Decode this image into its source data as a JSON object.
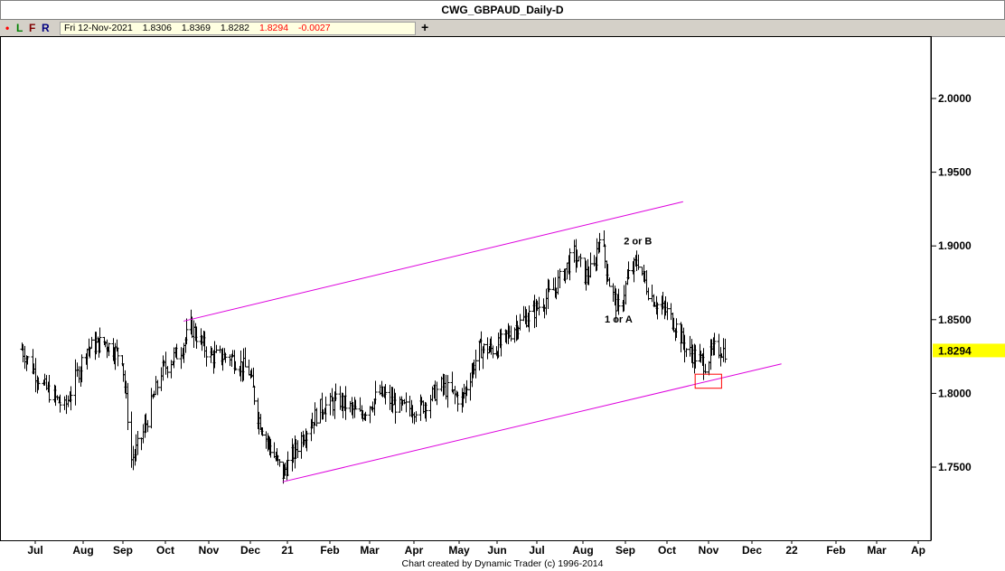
{
  "window": {
    "title": "CWG_GBPAUD_Daily-D"
  },
  "toolbar": {
    "buttons": [
      {
        "label": "•",
        "color": "#ff0000"
      },
      {
        "label": "L",
        "color": "#008000"
      },
      {
        "label": "F",
        "color": "#800000"
      },
      {
        "label": "R",
        "color": "#000080"
      }
    ],
    "plus_label": "+"
  },
  "info": {
    "date": "Fri 12-Nov-2021",
    "open": "1.8306",
    "high": "1.8369",
    "low": "1.8282",
    "close": "1.8294",
    "change": "-0.0027"
  },
  "footer": {
    "credit": "Chart created by Dynamic Trader  (c)  1996-2014"
  },
  "colors": {
    "trendline": "#dd00dd",
    "price_tag": "#ffff00",
    "highlight_box": "#ff0000",
    "change_text": "#ff0000"
  },
  "chart_data": {
    "type": "ohlc",
    "title": "CWG_GBPAUD_Daily-D",
    "x_tick_labels": [
      "Jul",
      "Aug",
      "Sep",
      "Oct",
      "Nov",
      "Dec",
      "21",
      "Feb",
      "Mar",
      "Apr",
      "May",
      "Jun",
      "Jul",
      "Aug",
      "Sep",
      "Oct",
      "Nov",
      "Dec",
      "22",
      "Feb",
      "Mar",
      "Ap"
    ],
    "y_ticks": [
      "1.7500",
      "1.8000",
      "1.8500",
      "1.9000",
      "1.9500",
      "2.0000"
    ],
    "ylim": [
      1.68,
      2.05
    ],
    "last_price": "1.8294",
    "series": [
      {
        "x": [
          "2020-06-22",
          "2020-07-06",
          "2020-07-20",
          "2020-08-03",
          "2020-08-17",
          "2020-08-31",
          "2020-09-07",
          "2020-09-14",
          "2020-09-28",
          "2020-10-12",
          "2020-10-19",
          "2020-11-02",
          "2020-11-16",
          "2020-11-30",
          "2020-12-07",
          "2020-12-14",
          "2020-12-28",
          "2021-01-11",
          "2021-01-25",
          "2021-02-08",
          "2021-02-22",
          "2021-03-08",
          "2021-03-22",
          "2021-04-05",
          "2021-04-19",
          "2021-05-03",
          "2021-05-17",
          "2021-05-31",
          "2021-06-14",
          "2021-06-28",
          "2021-07-12",
          "2021-07-26",
          "2021-08-02",
          "2021-08-09",
          "2021-08-13",
          "2021-08-20",
          "2021-08-27",
          "2021-09-03",
          "2021-09-10",
          "2021-09-17",
          "2021-09-24",
          "2021-10-01",
          "2021-10-08",
          "2021-10-15",
          "2021-10-22",
          "2021-10-29",
          "2021-11-05",
          "2021-11-12"
        ],
        "y": [
          1.83,
          1.805,
          1.79,
          1.83,
          1.835,
          1.825,
          1.755,
          1.77,
          1.815,
          1.83,
          1.845,
          1.825,
          1.825,
          1.815,
          1.785,
          1.77,
          1.745,
          1.77,
          1.79,
          1.795,
          1.785,
          1.8,
          1.79,
          1.79,
          1.805,
          1.795,
          1.83,
          1.83,
          1.845,
          1.855,
          1.87,
          1.895,
          1.88,
          1.885,
          1.91,
          1.875,
          1.855,
          1.88,
          1.89,
          1.87,
          1.86,
          1.855,
          1.845,
          1.83,
          1.825,
          1.82,
          1.83,
          1.829
        ]
      }
    ],
    "trendlines": [
      {
        "name": "upper channel",
        "from": {
          "x": "2020-10-14",
          "y": 1.849
        },
        "to": {
          "x": "2021-10-13",
          "y": 1.93
        }
      },
      {
        "name": "lower channel",
        "from": {
          "x": "2020-12-28",
          "y": 1.74
        },
        "to": {
          "x": "2021-12-24",
          "y": 1.82
        }
      }
    ],
    "annotations": [
      {
        "text": "2 or B",
        "x": "2021-09-10",
        "y": 1.901
      },
      {
        "text": "1 or A",
        "x": "2021-08-27",
        "y": 1.848
      }
    ],
    "highlight_box": {
      "x_start": "2021-10-22",
      "x_end": "2021-11-10",
      "y_low": 1.809,
      "y_high": 1.813
    }
  }
}
